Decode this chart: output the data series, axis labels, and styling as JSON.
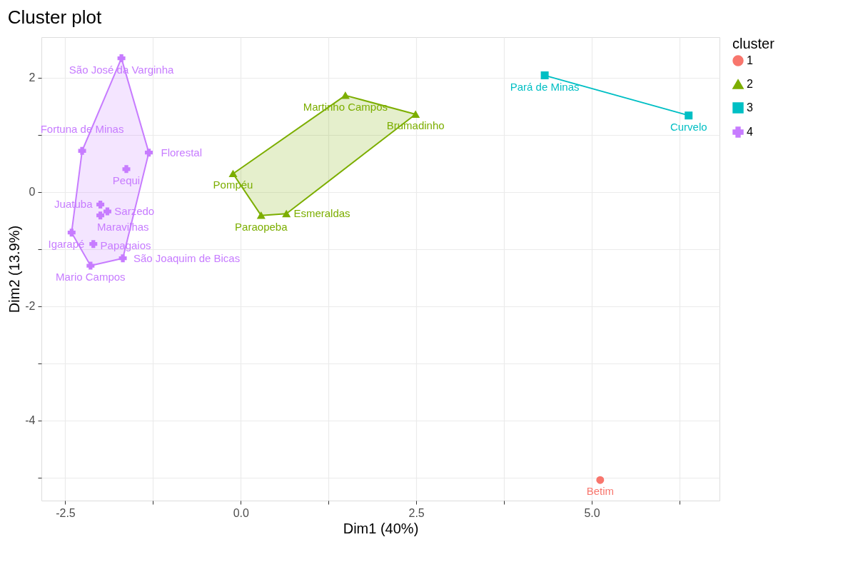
{
  "chart_data": {
    "type": "scatter",
    "title": "Cluster plot",
    "xlabel": "Dim1 (40%)",
    "ylabel": "Dim2 (13.9%)",
    "legend_title": "cluster",
    "legend": "right",
    "grid": true,
    "xlim": [
      -2.84,
      6.82
    ],
    "ylim": [
      -5.4,
      2.71
    ],
    "xticks": [
      -2.5,
      {
        "value": -1.25,
        "label": null
      },
      {
        "value": 0,
        "label": "0.0"
      },
      {
        "value": 1.25,
        "label": null
      },
      2.5,
      {
        "value": 3.75,
        "label": null
      },
      {
        "value": 5,
        "label": "5.0"
      },
      {
        "value": 6.25,
        "label": null
      }
    ],
    "yticks": [
      {
        "value": -5,
        "label": null
      },
      -4,
      {
        "value": -3,
        "label": null
      },
      -2,
      {
        "value": -1,
        "label": null
      },
      0,
      {
        "value": 1,
        "label": null
      },
      2
    ],
    "series": [
      {
        "name": "1",
        "color": "#f8766d",
        "marker": "circle",
        "x": [
          5.12
        ],
        "values": [
          -5.04
        ]
      },
      {
        "name": "2",
        "color": "#7cae00",
        "marker": "triangle",
        "x": [
          1.49,
          2.49,
          -0.11,
          0.29,
          0.65
        ],
        "values": [
          1.69,
          1.36,
          0.32,
          -0.41,
          -0.38
        ]
      },
      {
        "name": "3",
        "color": "#00bfc4",
        "marker": "square",
        "x": [
          4.33,
          6.38
        ],
        "values": [
          2.04,
          1.34
        ]
      },
      {
        "name": "4",
        "color": "#c77cff",
        "marker": "cross",
        "x": [
          -1.7,
          -2.26,
          -1.31,
          -1.63,
          -2.0,
          -1.9,
          -2.0,
          -2.41,
          -2.1,
          -1.68,
          -2.14
        ],
        "values": [
          2.34,
          0.72,
          0.69,
          0.4,
          -0.22,
          -0.34,
          -0.41,
          -0.71,
          -0.91,
          -1.16,
          -1.29
        ]
      }
    ],
    "annotations": [
      {
        "text": "Betim",
        "x": 5.12,
        "y": -5.04
      },
      {
        "text": "Martinho Campos",
        "x": 1.49,
        "y": 1.69
      },
      {
        "text": "Brumadinho",
        "x": 2.49,
        "y": 1.36
      },
      {
        "text": "Pompéu",
        "x": -0.11,
        "y": 0.32
      },
      {
        "text": "Paraopeba",
        "x": 0.29,
        "y": -0.41
      },
      {
        "text": "Esmeraldas",
        "x": 0.65,
        "y": -0.38
      },
      {
        "text": "Pará de Minas",
        "x": 4.33,
        "y": 2.04
      },
      {
        "text": "Curvelo",
        "x": 6.38,
        "y": 1.34
      },
      {
        "text": "São José da Varginha",
        "x": -1.7,
        "y": 2.34
      },
      {
        "text": "Fortuna de Minas",
        "x": -2.26,
        "y": 0.72
      },
      {
        "text": "Florestal",
        "x": -1.31,
        "y": 0.69
      },
      {
        "text": "Pequi",
        "x": -1.63,
        "y": 0.4
      },
      {
        "text": "Juatuba",
        "x": -2.0,
        "y": -0.22
      },
      {
        "text": "Sarzedo",
        "x": -1.9,
        "y": -0.34
      },
      {
        "text": "Maravilhas",
        "x": -2.0,
        "y": -0.41
      },
      {
        "text": "Papagaios",
        "x": -2.41,
        "y": -0.71
      },
      {
        "text": "Igarapé",
        "x": -2.1,
        "y": -0.91
      },
      {
        "text": "São Joaquim de Bicas",
        "x": -1.68,
        "y": -1.16
      },
      {
        "text": "Mario Campos",
        "x": -2.14,
        "y": -1.29
      }
    ]
  }
}
